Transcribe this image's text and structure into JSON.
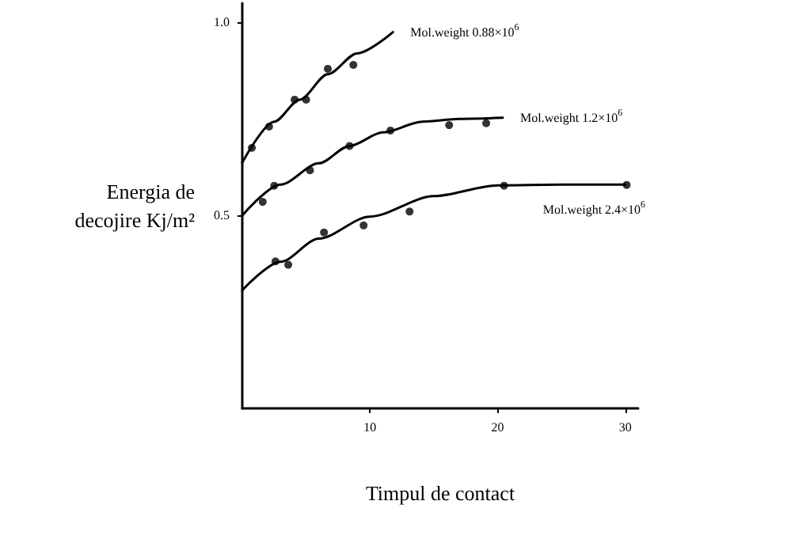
{
  "chart_data": {
    "type": "scatter",
    "xlabel": "Timpul de contact",
    "ylabel": "Energia de\ndecojire Kj/m²",
    "xlim": [
      0,
      31
    ],
    "ylim": [
      0,
      1.05
    ],
    "xticks": [
      10,
      20,
      30
    ],
    "yticks": [
      0.5,
      {
        "value": 1.0,
        "label": "1.0"
      }
    ],
    "grid": false,
    "legend": false,
    "marker": "circle",
    "series": [
      {
        "color": "#000000",
        "x": [
          0.75,
          2.1,
          4.1,
          5.0,
          6.7,
          8.7
        ],
        "values": [
          0.675,
          0.73,
          0.8,
          0.8,
          0.88,
          0.89
        ]
      },
      {
        "color": "#000000",
        "x": [
          1.6,
          2.5,
          5.3,
          8.4,
          11.6,
          16.2,
          19.1
        ],
        "values": [
          0.535,
          0.577,
          0.617,
          0.68,
          0.72,
          0.734,
          0.739
        ]
      },
      {
        "color": "#000000",
        "x": [
          2.6,
          3.6,
          6.4,
          9.5,
          13.1,
          20.5,
          30.1
        ],
        "values": [
          0.381,
          0.372,
          0.456,
          0.474,
          0.51,
          0.577,
          0.579
        ]
      },
      {
        "type": "line",
        "marker": "none",
        "name": "Mol.weight 0.88×10$^{6}$",
        "color": "#000000",
        "x": [
          0,
          2.5,
          4.5,
          6.7,
          9,
          11.8
        ],
        "values": [
          0.637,
          0.743,
          0.8,
          0.866,
          0.92,
          0.975
        ]
      },
      {
        "type": "line",
        "marker": "none",
        "name": "Mol.weight 1.2×10$^{6}$",
        "color": "#000000",
        "x": [
          0,
          3,
          6,
          8.4,
          11,
          14.1,
          17,
          20.4
        ],
        "values": [
          0.5,
          0.58,
          0.635,
          0.68,
          0.715,
          0.743,
          0.75,
          0.753
        ]
      },
      {
        "type": "line",
        "marker": "none",
        "name": "Mol.weight 2.4×10$^{6}$",
        "color": "#000000",
        "x": [
          0,
          3,
          6,
          10,
          15,
          20,
          25,
          30
        ],
        "values": [
          0.306,
          0.38,
          0.44,
          0.497,
          0.55,
          0.578,
          0.58,
          0.58
        ]
      }
    ]
  }
}
